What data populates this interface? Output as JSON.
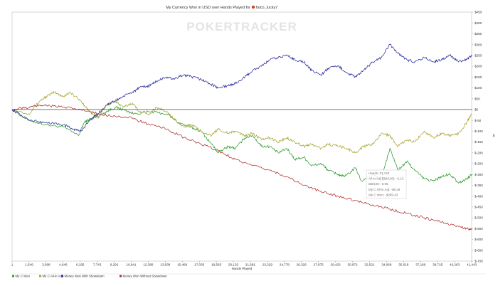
{
  "chart_data": {
    "type": "line",
    "title": "My Currency Won in USD over Hands Played for",
    "player": "falco_lucky7",
    "watermark": "POKERTRACKER",
    "xlabel": "Hands Played",
    "ylabel": "$",
    "x_ticks": [
      "1",
      "1,549",
      "3,098",
      "4,646",
      "6,195",
      "7,743",
      "9,292",
      "10,841",
      "12,389",
      "13,938",
      "15,486",
      "17,035",
      "18,583",
      "20,132",
      "21,681",
      "23,229",
      "24,778",
      "26,326",
      "27,875",
      "29,423",
      "30,972",
      "32,521",
      "34,069",
      "35,618",
      "37,166",
      "38,715",
      "40,263",
      "41,443"
    ],
    "y_ticks": [
      "$450",
      "$400",
      "$350",
      "$300",
      "$250",
      "$200",
      "$150",
      "$100",
      "$50",
      "$0",
      "$-50",
      "$-100",
      "$-150",
      "$-200",
      "$-250",
      "$-300",
      "$-350",
      "$-400",
      "$-450",
      "$-500",
      "$-550",
      "$-600",
      "$-650",
      "$-700"
    ],
    "xlim": [
      1,
      41443
    ],
    "ylim": [
      -700,
      450
    ],
    "grid": false,
    "legend_position": "bottom",
    "series": [
      {
        "name": "My C Won",
        "color": "#2d9a2d",
        "points": [
          [
            1,
            0
          ],
          [
            1500,
            -50
          ],
          [
            3000,
            -70
          ],
          [
            4600,
            -80
          ],
          [
            6000,
            -120
          ],
          [
            6500,
            -60
          ],
          [
            7000,
            -45
          ],
          [
            7743,
            -30
          ],
          [
            8500,
            -10
          ],
          [
            9300,
            10
          ],
          [
            10000,
            0
          ],
          [
            11000,
            -20
          ],
          [
            12389,
            -10
          ],
          [
            13938,
            -20
          ],
          [
            15000,
            -60
          ],
          [
            16000,
            -80
          ],
          [
            17035,
            -100
          ],
          [
            18000,
            -160
          ],
          [
            18583,
            -200
          ],
          [
            19500,
            -170
          ],
          [
            20132,
            -180
          ],
          [
            21000,
            -130
          ],
          [
            21681,
            -120
          ],
          [
            22500,
            -170
          ],
          [
            23229,
            -170
          ],
          [
            24000,
            -200
          ],
          [
            24778,
            -180
          ],
          [
            25500,
            -230
          ],
          [
            26326,
            -220
          ],
          [
            27000,
            -260
          ],
          [
            27875,
            -250
          ],
          [
            28500,
            -280
          ],
          [
            29423,
            -300
          ],
          [
            30000,
            -310
          ],
          [
            30972,
            -270
          ],
          [
            31500,
            -330
          ],
          [
            32521,
            -300
          ],
          [
            33300,
            -320
          ],
          [
            34069,
            -180
          ],
          [
            34800,
            -280
          ],
          [
            35618,
            -240
          ],
          [
            36300,
            -280
          ],
          [
            37166,
            -320
          ],
          [
            38000,
            -330
          ],
          [
            38715,
            -310
          ],
          [
            39500,
            -300
          ],
          [
            40263,
            -340
          ],
          [
            41000,
            -320
          ],
          [
            41443,
            -300
          ]
        ]
      },
      {
        "name": "My C All-in Adj",
        "color": "#a6a632",
        "points": [
          [
            1,
            0
          ],
          [
            1500,
            -20
          ],
          [
            2500,
            40
          ],
          [
            3098,
            60
          ],
          [
            3800,
            80
          ],
          [
            4646,
            60
          ],
          [
            5200,
            80
          ],
          [
            6195,
            40
          ],
          [
            7000,
            -10
          ],
          [
            7743,
            -40
          ],
          [
            8500,
            20
          ],
          [
            9292,
            40
          ],
          [
            10000,
            10
          ],
          [
            10841,
            30
          ],
          [
            11500,
            -10
          ],
          [
            12389,
            -20
          ],
          [
            13000,
            10
          ],
          [
            13938,
            -10
          ],
          [
            14500,
            -40
          ],
          [
            15486,
            -80
          ],
          [
            16200,
            -70
          ],
          [
            17035,
            -100
          ],
          [
            18000,
            -120
          ],
          [
            18583,
            -90
          ],
          [
            19500,
            -110
          ],
          [
            20132,
            -100
          ],
          [
            21000,
            -120
          ],
          [
            21681,
            -110
          ],
          [
            22500,
            -140
          ],
          [
            23229,
            -130
          ],
          [
            24000,
            -150
          ],
          [
            24778,
            -130
          ],
          [
            25500,
            -150
          ],
          [
            26326,
            -170
          ],
          [
            27000,
            -160
          ],
          [
            27875,
            -180
          ],
          [
            28500,
            -160
          ],
          [
            29423,
            -170
          ],
          [
            30200,
            -180
          ],
          [
            30972,
            -200
          ],
          [
            31700,
            -170
          ],
          [
            32521,
            -160
          ],
          [
            33300,
            -110
          ],
          [
            34069,
            -120
          ],
          [
            34800,
            -170
          ],
          [
            35618,
            -140
          ],
          [
            36300,
            -150
          ],
          [
            37166,
            -100
          ],
          [
            38000,
            -130
          ],
          [
            38715,
            -110
          ],
          [
            39500,
            -120
          ],
          [
            40263,
            -110
          ],
          [
            41000,
            -60
          ],
          [
            41443,
            -20
          ]
        ]
      },
      {
        "name": "Money Won With Showdown",
        "color": "#2b2b9e",
        "points": [
          [
            1,
            0
          ],
          [
            1549,
            -50
          ],
          [
            3098,
            -60
          ],
          [
            4646,
            -70
          ],
          [
            5500,
            -90
          ],
          [
            6195,
            -100
          ],
          [
            7000,
            -50
          ],
          [
            7743,
            -20
          ],
          [
            8500,
            20
          ],
          [
            9292,
            40
          ],
          [
            10000,
            60
          ],
          [
            10841,
            80
          ],
          [
            11500,
            100
          ],
          [
            12389,
            110
          ],
          [
            13000,
            130
          ],
          [
            13938,
            150
          ],
          [
            14500,
            140
          ],
          [
            15486,
            160
          ],
          [
            16200,
            150
          ],
          [
            17035,
            140
          ],
          [
            17800,
            120
          ],
          [
            18583,
            100
          ],
          [
            19500,
            110
          ],
          [
            20132,
            120
          ],
          [
            21000,
            150
          ],
          [
            21681,
            180
          ],
          [
            22500,
            200
          ],
          [
            23229,
            230
          ],
          [
            24000,
            240
          ],
          [
            24778,
            250
          ],
          [
            25500,
            230
          ],
          [
            26326,
            220
          ],
          [
            27000,
            180
          ],
          [
            27875,
            160
          ],
          [
            28500,
            190
          ],
          [
            29423,
            200
          ],
          [
            30200,
            170
          ],
          [
            30972,
            150
          ],
          [
            31700,
            180
          ],
          [
            32521,
            220
          ],
          [
            33300,
            240
          ],
          [
            34069,
            300
          ],
          [
            34800,
            260
          ],
          [
            35618,
            230
          ],
          [
            36300,
            220
          ],
          [
            37166,
            240
          ],
          [
            38000,
            220
          ],
          [
            38715,
            230
          ],
          [
            39500,
            250
          ],
          [
            40263,
            220
          ],
          [
            41000,
            230
          ],
          [
            41443,
            250
          ]
        ]
      },
      {
        "name": "Money Won Without Showdown",
        "color": "#b02a2a",
        "points": [
          [
            1,
            0
          ],
          [
            1549,
            10
          ],
          [
            2500,
            20
          ],
          [
            3098,
            20
          ],
          [
            4646,
            10
          ],
          [
            6195,
            0
          ],
          [
            7743,
            -20
          ],
          [
            9292,
            -30
          ],
          [
            10841,
            -40
          ],
          [
            12389,
            -70
          ],
          [
            13938,
            -90
          ],
          [
            15486,
            -130
          ],
          [
            17035,
            -160
          ],
          [
            18583,
            -190
          ],
          [
            20132,
            -230
          ],
          [
            21681,
            -260
          ],
          [
            23229,
            -280
          ],
          [
            24778,
            -310
          ],
          [
            26326,
            -350
          ],
          [
            27875,
            -380
          ],
          [
            29423,
            -400
          ],
          [
            30972,
            -420
          ],
          [
            32521,
            -440
          ],
          [
            34069,
            -460
          ],
          [
            35618,
            -480
          ],
          [
            37166,
            -500
          ],
          [
            38715,
            -520
          ],
          [
            40263,
            -540
          ],
          [
            41000,
            -550
          ],
          [
            41443,
            -550
          ]
        ]
      }
    ],
    "tooltip": {
      "lines": [
        "Hands: 31,143",
        "All-in Adj (BB/100): -0.13",
        "BB/100: -6.96",
        "My C All-in Adj: -$5.29",
        "My C Won: -$289.43"
      ]
    }
  }
}
